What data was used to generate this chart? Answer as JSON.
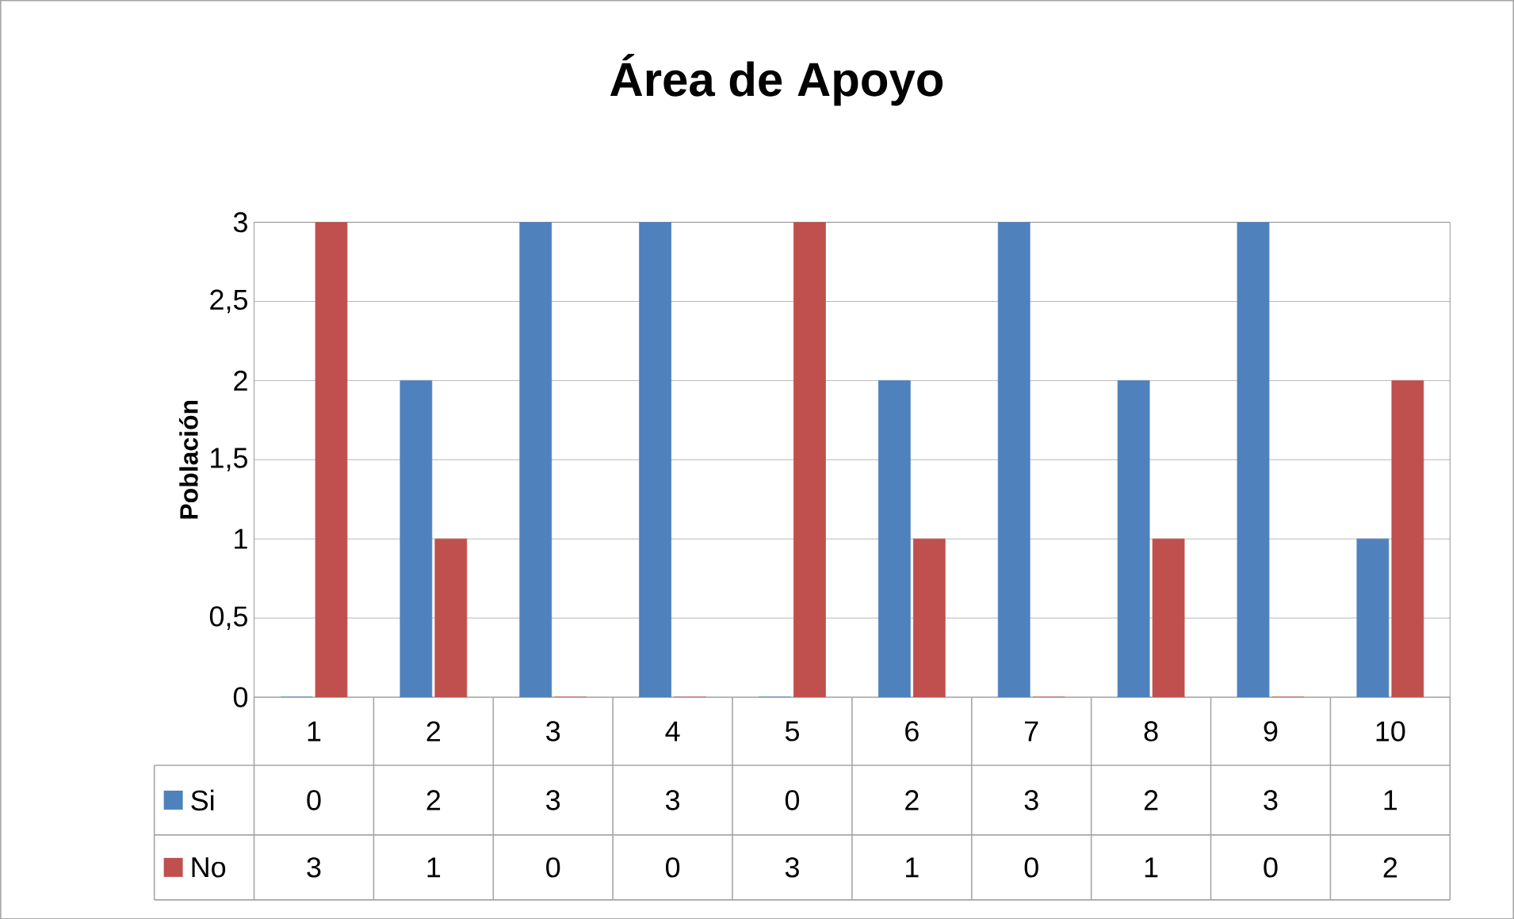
{
  "chart_data": {
    "type": "bar",
    "title": "Área de Apoyo",
    "ylabel": "Población",
    "categories": [
      "1",
      "2",
      "3",
      "4",
      "5",
      "6",
      "7",
      "8",
      "9",
      "10"
    ],
    "series": [
      {
        "name": "Si",
        "color": "#4f81bd",
        "values": [
          0,
          2,
          3,
          3,
          0,
          2,
          3,
          2,
          3,
          1
        ]
      },
      {
        "name": "No",
        "color": "#c0504d",
        "values": [
          3,
          1,
          0,
          0,
          3,
          1,
          0,
          1,
          0,
          2
        ]
      }
    ],
    "ylim": [
      0,
      3
    ],
    "yticks": [
      0,
      {
        "value": 0.5,
        "label": "0,5"
      },
      1,
      {
        "value": 1.5,
        "label": "1,5"
      },
      2,
      {
        "value": 2.5,
        "label": "2,5"
      },
      3
    ],
    "grid": "y",
    "legend": "bottom",
    "data_labels": true
  }
}
